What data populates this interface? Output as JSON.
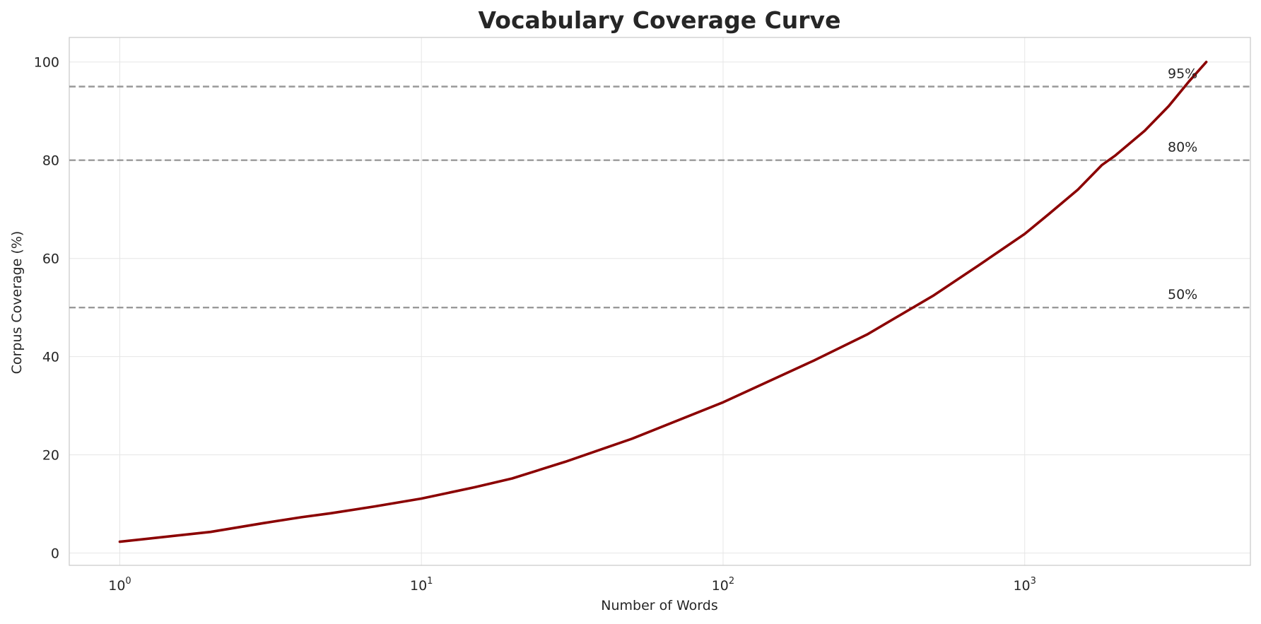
{
  "chart_data": {
    "type": "line",
    "title": "Vocabulary Coverage Curve",
    "xlabel": "Number of Words",
    "ylabel": "Corpus Coverage (%)",
    "xscale": "log",
    "xlim": [
      0.68,
      5600
    ],
    "ylim": [
      -2.5,
      105
    ],
    "x_ticks": [
      {
        "base": "10",
        "exp": "0",
        "value": 1
      },
      {
        "base": "10",
        "exp": "1",
        "value": 10
      },
      {
        "base": "10",
        "exp": "2",
        "value": 100
      },
      {
        "base": "10",
        "exp": "3",
        "value": 1000
      }
    ],
    "y_ticks": [
      0,
      20,
      40,
      60,
      80,
      100
    ],
    "grid": true,
    "series": [
      {
        "color": "#8b0000",
        "x": [
          1,
          2,
          3,
          4,
          5,
          7,
          10,
          15,
          20,
          30,
          50,
          100,
          200,
          300,
          500,
          700,
          1000,
          1200,
          1500,
          1800,
          2000,
          2500,
          3000,
          3500,
          4000
        ],
        "y": [
          2.3,
          4.3,
          6.1,
          7.3,
          8.1,
          9.5,
          11.1,
          13.4,
          15.2,
          18.6,
          23.3,
          30.7,
          39.2,
          44.5,
          52.5,
          58.5,
          65.0,
          69.0,
          74.0,
          79.0,
          81.0,
          86.0,
          91.0,
          96.0,
          100.0
        ]
      }
    ],
    "reference_lines": [
      {
        "y": 50,
        "label": "50%"
      },
      {
        "y": 80,
        "label": "80%"
      },
      {
        "y": 95,
        "label": "95%"
      }
    ],
    "reference_color": "#999999"
  }
}
